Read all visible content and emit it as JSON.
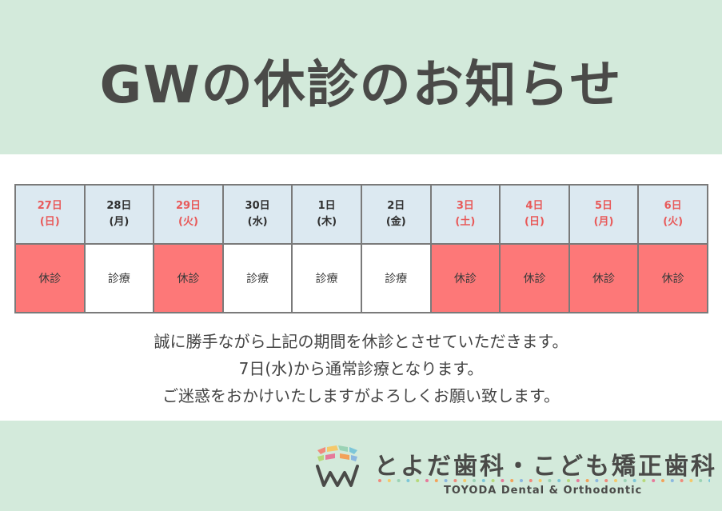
{
  "title": "GWの休診のお知らせ",
  "days": [
    {
      "date": "27日",
      "weekday": "(日)",
      "date_color": "red",
      "status": "休診",
      "closed": true
    },
    {
      "date": "28日",
      "weekday": "(月)",
      "date_color": "black",
      "status": "診療",
      "closed": false
    },
    {
      "date": "29日",
      "weekday": "(火)",
      "date_color": "red",
      "status": "休診",
      "closed": true
    },
    {
      "date": "30日",
      "weekday": "(水)",
      "date_color": "black",
      "status": "診療",
      "closed": false
    },
    {
      "date": "1日",
      "weekday": "(木)",
      "date_color": "black",
      "status": "診療",
      "closed": false
    },
    {
      "date": "2日",
      "weekday": "(金)",
      "date_color": "black",
      "status": "診療",
      "closed": false
    },
    {
      "date": "3日",
      "weekday": "(土)",
      "date_color": "red",
      "status": "休診",
      "closed": true
    },
    {
      "date": "4日",
      "weekday": "(日)",
      "date_color": "red",
      "status": "休診",
      "closed": true
    },
    {
      "date": "5日",
      "weekday": "(月)",
      "date_color": "red",
      "status": "休診",
      "closed": true
    },
    {
      "date": "6日",
      "weekday": "(火)",
      "date_color": "red",
      "status": "休診",
      "closed": true
    }
  ],
  "message": {
    "line1": "誠に勝手ながら上記の期間を休診とさせていただきます。",
    "line2": "7日(水)から通常診療となります。",
    "line3": "ご迷惑をおかけいたしますがよろしくお願い致します。"
  },
  "footer": {
    "brand_name": "とよだ歯科・こども矯正歯科",
    "brand_sub": "TOYODA Dental & Orthodontic",
    "logo_icon": "tooth-logo-icon"
  },
  "colors": {
    "header_bg": "#d3eadb",
    "date_row_bg": "#dce9f1",
    "closed_bg": "#fd7878",
    "red_text": "#e85a5a"
  }
}
